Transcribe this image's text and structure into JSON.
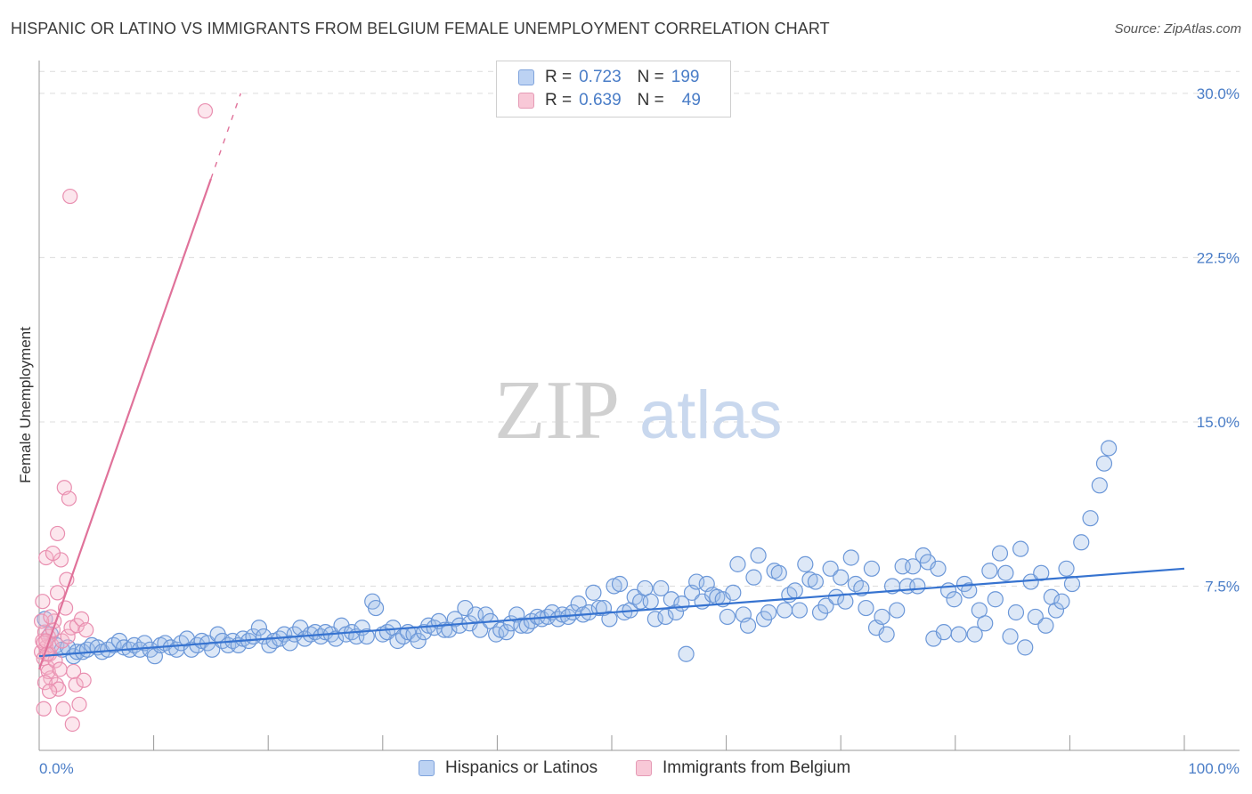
{
  "title": "HISPANIC OR LATINO VS IMMIGRANTS FROM BELGIUM FEMALE UNEMPLOYMENT CORRELATION CHART",
  "source": "Source: ZipAtlas.com",
  "watermark": {
    "zip": "ZIP",
    "atlas": "atlas"
  },
  "legend_top": {
    "rows": [
      {
        "r_label": "R =",
        "r_value": "0.723",
        "n_label": "N =",
        "n_value": "199",
        "color": "#4a7dc7"
      },
      {
        "r_label": "R =",
        "r_value": "0.639",
        "n_label": "N =",
        "n_value": "49",
        "color": "#e0729a"
      }
    ]
  },
  "legend_bottom": [
    {
      "label": "Hispanics or Latinos",
      "color": "#4a7dc7"
    },
    {
      "label": "Immigrants from Belgium",
      "color": "#e0729a"
    }
  ],
  "chart_data": {
    "type": "scatter",
    "title": "HISPANIC OR LATINO VS IMMIGRANTS FROM BELGIUM FEMALE UNEMPLOYMENT CORRELATION CHART",
    "xlabel": "",
    "ylabel": "Female Unemployment",
    "xlim": [
      0,
      100
    ],
    "ylim": [
      0,
      31.5
    ],
    "x_tick_labels": [
      "0.0%",
      "100.0%"
    ],
    "y_ticks": [
      7.5,
      15.0,
      22.5,
      30.0
    ],
    "y_tick_labels": [
      "7.5%",
      "15.0%",
      "22.5%",
      "30.0%"
    ],
    "grid": true,
    "series": [
      {
        "name": "Hispanics or Latinos",
        "color": "#4a7dc7",
        "R": 0.723,
        "N": 199,
        "trend": {
          "x": [
            0,
            100
          ],
          "y": [
            4.3,
            8.3
          ]
        },
        "points": [
          [
            0.5,
            6.0
          ],
          [
            1.0,
            5.3
          ],
          [
            1.5,
            4.8
          ],
          [
            2.0,
            4.6
          ],
          [
            2.5,
            4.7
          ],
          [
            3.0,
            4.3
          ],
          [
            3.3,
            4.5
          ],
          [
            3.8,
            4.5
          ],
          [
            4.2,
            4.6
          ],
          [
            4.6,
            4.8
          ],
          [
            5.1,
            4.7
          ],
          [
            5.5,
            4.5
          ],
          [
            6.0,
            4.6
          ],
          [
            6.5,
            4.8
          ],
          [
            7.0,
            5.0
          ],
          [
            7.4,
            4.7
          ],
          [
            7.9,
            4.6
          ],
          [
            8.3,
            4.8
          ],
          [
            8.8,
            4.6
          ],
          [
            9.2,
            4.9
          ],
          [
            9.7,
            4.6
          ],
          [
            10.1,
            4.3
          ],
          [
            10.6,
            4.8
          ],
          [
            11.0,
            4.9
          ],
          [
            11.5,
            4.7
          ],
          [
            12.0,
            4.6
          ],
          [
            12.4,
            4.9
          ],
          [
            12.9,
            5.1
          ],
          [
            13.3,
            4.6
          ],
          [
            13.8,
            4.8
          ],
          [
            14.2,
            5.0
          ],
          [
            14.7,
            4.9
          ],
          [
            15.1,
            4.6
          ],
          [
            15.6,
            5.3
          ],
          [
            16.0,
            5.0
          ],
          [
            16.5,
            4.8
          ],
          [
            16.9,
            5.0
          ],
          [
            17.4,
            4.8
          ],
          [
            17.8,
            5.1
          ],
          [
            18.3,
            5.0
          ],
          [
            18.7,
            5.2
          ],
          [
            19.2,
            5.6
          ],
          [
            19.6,
            5.2
          ],
          [
            20.1,
            4.8
          ],
          [
            20.5,
            5.0
          ],
          [
            21.0,
            5.1
          ],
          [
            21.4,
            5.3
          ],
          [
            21.9,
            4.9
          ],
          [
            22.3,
            5.3
          ],
          [
            22.8,
            5.6
          ],
          [
            23.2,
            5.1
          ],
          [
            23.7,
            5.3
          ],
          [
            24.1,
            5.4
          ],
          [
            24.6,
            5.2
          ],
          [
            25.0,
            5.4
          ],
          [
            25.5,
            5.3
          ],
          [
            25.9,
            5.1
          ],
          [
            26.4,
            5.7
          ],
          [
            26.8,
            5.3
          ],
          [
            27.3,
            5.4
          ],
          [
            27.7,
            5.2
          ],
          [
            28.2,
            5.6
          ],
          [
            28.6,
            5.2
          ],
          [
            29.1,
            6.8
          ],
          [
            29.4,
            6.5
          ],
          [
            30.0,
            5.3
          ],
          [
            30.4,
            5.4
          ],
          [
            30.9,
            5.6
          ],
          [
            31.3,
            5.0
          ],
          [
            31.8,
            5.2
          ],
          [
            32.2,
            5.4
          ],
          [
            32.7,
            5.3
          ],
          [
            33.1,
            5.0
          ],
          [
            33.6,
            5.4
          ],
          [
            34.0,
            5.7
          ],
          [
            34.5,
            5.6
          ],
          [
            34.9,
            5.9
          ],
          [
            35.4,
            5.5
          ],
          [
            35.8,
            5.5
          ],
          [
            36.3,
            6.0
          ],
          [
            36.7,
            5.7
          ],
          [
            37.2,
            6.5
          ],
          [
            37.6,
            5.8
          ],
          [
            38.1,
            6.2
          ],
          [
            38.5,
            5.5
          ],
          [
            39.0,
            6.2
          ],
          [
            39.4,
            5.9
          ],
          [
            39.9,
            5.3
          ],
          [
            40.3,
            5.5
          ],
          [
            40.8,
            5.4
          ],
          [
            41.2,
            5.8
          ],
          [
            41.7,
            6.2
          ],
          [
            42.1,
            5.7
          ],
          [
            42.6,
            5.7
          ],
          [
            43.0,
            5.9
          ],
          [
            43.5,
            6.1
          ],
          [
            43.9,
            6.0
          ],
          [
            44.4,
            6.1
          ],
          [
            44.8,
            6.3
          ],
          [
            45.3,
            6.0
          ],
          [
            45.7,
            6.2
          ],
          [
            46.2,
            6.1
          ],
          [
            46.6,
            6.3
          ],
          [
            47.1,
            6.7
          ],
          [
            47.5,
            6.2
          ],
          [
            48.0,
            6.3
          ],
          [
            48.4,
            7.2
          ],
          [
            48.9,
            6.5
          ],
          [
            49.3,
            6.5
          ],
          [
            49.8,
            6.0
          ],
          [
            50.2,
            7.5
          ],
          [
            50.7,
            7.6
          ],
          [
            51.1,
            6.3
          ],
          [
            51.6,
            6.4
          ],
          [
            52.0,
            7.0
          ],
          [
            52.5,
            6.8
          ],
          [
            52.9,
            7.4
          ],
          [
            53.4,
            6.8
          ],
          [
            53.8,
            6.0
          ],
          [
            54.3,
            7.4
          ],
          [
            54.7,
            6.1
          ],
          [
            55.2,
            6.9
          ],
          [
            55.6,
            6.3
          ],
          [
            56.1,
            6.7
          ],
          [
            56.5,
            4.4
          ],
          [
            57.0,
            7.2
          ],
          [
            57.4,
            7.7
          ],
          [
            57.9,
            6.8
          ],
          [
            58.3,
            7.6
          ],
          [
            58.8,
            7.1
          ],
          [
            59.2,
            7.0
          ],
          [
            59.7,
            6.9
          ],
          [
            60.1,
            6.1
          ],
          [
            60.6,
            7.2
          ],
          [
            61.0,
            8.5
          ],
          [
            61.5,
            6.2
          ],
          [
            61.9,
            5.7
          ],
          [
            62.4,
            7.9
          ],
          [
            62.8,
            8.9
          ],
          [
            63.3,
            6.0
          ],
          [
            63.7,
            6.3
          ],
          [
            64.2,
            8.2
          ],
          [
            64.6,
            8.1
          ],
          [
            65.1,
            6.4
          ],
          [
            65.5,
            7.1
          ],
          [
            66.0,
            7.3
          ],
          [
            66.4,
            6.4
          ],
          [
            66.9,
            8.5
          ],
          [
            67.3,
            7.8
          ],
          [
            67.8,
            7.7
          ],
          [
            68.2,
            6.3
          ],
          [
            68.7,
            6.6
          ],
          [
            69.1,
            8.3
          ],
          [
            69.6,
            7.0
          ],
          [
            70.0,
            7.9
          ],
          [
            70.4,
            6.8
          ],
          [
            70.9,
            8.8
          ],
          [
            71.3,
            7.6
          ],
          [
            71.8,
            7.4
          ],
          [
            72.2,
            6.5
          ],
          [
            72.7,
            8.3
          ],
          [
            73.1,
            5.6
          ],
          [
            73.6,
            6.1
          ],
          [
            74.0,
            5.3
          ],
          [
            74.5,
            7.5
          ],
          [
            74.9,
            6.4
          ],
          [
            75.4,
            8.4
          ],
          [
            75.8,
            7.5
          ],
          [
            76.3,
            8.4
          ],
          [
            76.7,
            7.5
          ],
          [
            77.2,
            8.9
          ],
          [
            77.6,
            8.6
          ],
          [
            78.1,
            5.1
          ],
          [
            78.5,
            8.3
          ],
          [
            79.0,
            5.4
          ],
          [
            79.4,
            7.3
          ],
          [
            79.9,
            6.9
          ],
          [
            80.3,
            5.3
          ],
          [
            80.8,
            7.6
          ],
          [
            81.2,
            7.3
          ],
          [
            81.7,
            5.3
          ],
          [
            82.1,
            6.4
          ],
          [
            82.6,
            5.8
          ],
          [
            83.0,
            8.2
          ],
          [
            83.5,
            6.9
          ],
          [
            83.9,
            9.0
          ],
          [
            84.4,
            8.1
          ],
          [
            84.8,
            5.2
          ],
          [
            85.3,
            6.3
          ],
          [
            85.7,
            9.2
          ],
          [
            86.1,
            4.7
          ],
          [
            86.6,
            7.7
          ],
          [
            87.0,
            6.1
          ],
          [
            87.5,
            8.1
          ],
          [
            87.9,
            5.7
          ],
          [
            88.4,
            7.0
          ],
          [
            88.8,
            6.4
          ],
          [
            89.3,
            6.8
          ],
          [
            89.7,
            8.3
          ],
          [
            90.2,
            7.6
          ],
          [
            91.0,
            9.5
          ],
          [
            91.8,
            10.6
          ],
          [
            92.6,
            12.1
          ],
          [
            93.0,
            13.1
          ],
          [
            93.4,
            13.8
          ]
        ]
      },
      {
        "name": "Immigrants from Belgium",
        "color": "#e0729a",
        "R": 0.639,
        "N": 49,
        "trend": {
          "x": [
            0,
            15
          ],
          "y": [
            3.7,
            26.1
          ]
        },
        "trend_dashed": {
          "x": [
            15,
            17.6
          ],
          "y": [
            26.1,
            30.0
          ]
        },
        "points": [
          [
            0.2,
            4.5
          ],
          [
            0.3,
            5.0
          ],
          [
            0.4,
            4.2
          ],
          [
            0.5,
            5.4
          ],
          [
            0.6,
            4.7
          ],
          [
            0.7,
            3.8
          ],
          [
            0.8,
            5.2
          ],
          [
            0.9,
            4.4
          ],
          [
            1.0,
            3.3
          ],
          [
            1.1,
            4.8
          ],
          [
            0.3,
            6.8
          ],
          [
            0.6,
            8.8
          ],
          [
            0.8,
            3.6
          ],
          [
            1.2,
            5.5
          ],
          [
            1.4,
            4.1
          ],
          [
            1.5,
            3.0
          ],
          [
            1.6,
            9.9
          ],
          [
            1.7,
            2.8
          ],
          [
            1.8,
            3.7
          ],
          [
            1.9,
            8.7
          ],
          [
            2.0,
            5.0
          ],
          [
            2.1,
            1.9
          ],
          [
            2.2,
            12.0
          ],
          [
            2.3,
            6.5
          ],
          [
            2.4,
            7.8
          ],
          [
            2.5,
            5.2
          ],
          [
            2.6,
            11.5
          ],
          [
            2.7,
            25.3
          ],
          [
            2.8,
            5.6
          ],
          [
            2.9,
            1.2
          ],
          [
            3.0,
            3.6
          ],
          [
            3.2,
            3.0
          ],
          [
            3.3,
            5.7
          ],
          [
            3.5,
            2.1
          ],
          [
            3.7,
            6.0
          ],
          [
            3.9,
            3.2
          ],
          [
            4.1,
            5.5
          ],
          [
            0.4,
            1.9
          ],
          [
            0.5,
            3.1
          ],
          [
            0.9,
            2.7
          ],
          [
            1.3,
            5.9
          ],
          [
            1.6,
            7.2
          ],
          [
            14.5,
            29.2
          ],
          [
            0.2,
            5.9
          ],
          [
            0.4,
            4.9
          ],
          [
            0.7,
            4.4
          ],
          [
            1.0,
            6.1
          ],
          [
            1.2,
            9.0
          ],
          [
            0.6,
            5.0
          ]
        ]
      }
    ]
  }
}
